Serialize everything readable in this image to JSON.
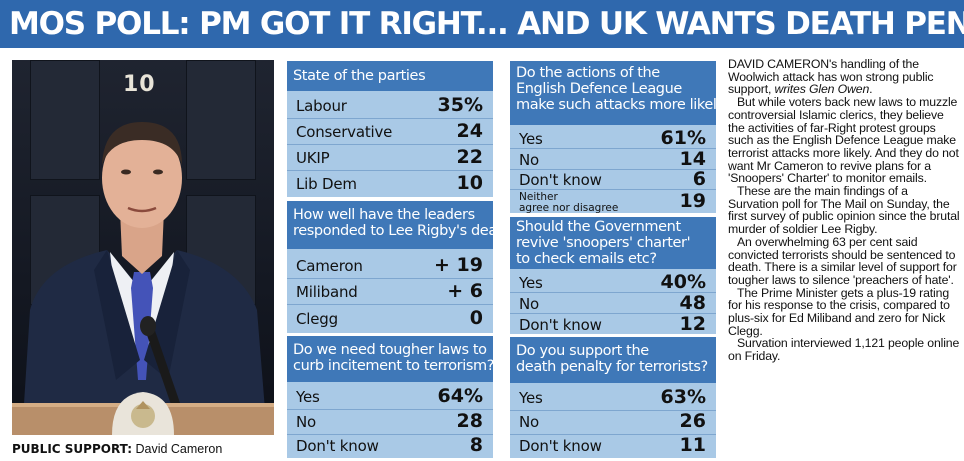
{
  "headline": "MOS POLL: PM GOT IT RIGHT... AND UK WANTS DEATH PENALTY BACK",
  "photo": {
    "door_number": "10",
    "caption_label": "PUBLIC SUPPORT:",
    "caption_text": " David Cameron",
    "colors": {
      "suit": "#1f2a44",
      "tie": "#4453b8",
      "shirt": "#eef0f4",
      "door": "#1a1f2a"
    }
  },
  "polls": [
    {
      "question_lines": [
        "State of the parties"
      ],
      "rows": [
        {
          "label": "Labour",
          "value": "35%"
        },
        {
          "label": "Conservative",
          "value": "24"
        },
        {
          "label": "UKIP",
          "value": "22"
        },
        {
          "label": "Lib Dem",
          "value": "10"
        }
      ]
    },
    {
      "question_lines": [
        "How well have the leaders",
        "responded to Lee Rigby's death?"
      ],
      "rows": [
        {
          "label": "Cameron",
          "value": "+ 19"
        },
        {
          "label": "Miliband",
          "value": "+ 6"
        },
        {
          "label": "Clegg",
          "value": "0"
        }
      ]
    },
    {
      "question_lines": [
        "Do we need tougher laws to",
        "curb incitement to terrorism?"
      ],
      "rows": [
        {
          "label": "Yes",
          "value": "64%"
        },
        {
          "label": "No",
          "value": "28"
        },
        {
          "label": "Don't know",
          "value": "8"
        }
      ]
    },
    {
      "question_lines": [
        "Do the actions of the",
        "English Defence League",
        "make such attacks more likely?"
      ],
      "rows": [
        {
          "label": "Yes",
          "value": "61%"
        },
        {
          "label": "No",
          "value": "14"
        },
        {
          "label": "Don't know",
          "value": "6"
        },
        {
          "label_lines": [
            "Neither",
            "agree nor disagree"
          ],
          "value": "19"
        }
      ]
    },
    {
      "question_lines": [
        "Should the Government",
        "revive 'snoopers' charter'",
        "to check emails etc?"
      ],
      "rows": [
        {
          "label": "Yes",
          "value": "40%"
        },
        {
          "label": "No",
          "value": "48"
        },
        {
          "label": "Don't know",
          "value": "12"
        }
      ]
    },
    {
      "question_lines": [
        "Do you support the",
        "death penalty for terrorists?"
      ],
      "rows": [
        {
          "label": "Yes",
          "value": "63%"
        },
        {
          "label": "No",
          "value": "26"
        },
        {
          "label": "Don't know",
          "value": "11"
        }
      ]
    }
  ],
  "article": {
    "lead": "DAVID CAMERON's handling of the Woolwich attack has won strong public support, ",
    "byline": "writes Glen Owen",
    "lead_end": ".",
    "paragraphs": [
      "But while voters back new laws to muzzle controversial Islamic clerics, they believe the activities of far-Right protest groups such as the English Defence League make terrorist attacks more likely. And they do not want Mr Cameron to revive plans for a 'Snoopers' Charter' to monitor emails.",
      "These are the main findings of a Survation poll for The Mail on Sunday, the first survey of public opinion since the brutal murder of soldier Lee Rigby.",
      "An overwhelming 63 per cent said convicted terrorists should be sentenced to death. There is a similar level of support for tougher laws to silence 'preachers of hate'.",
      "The Prime Minister gets a plus-19 rating for his response to the crisis, compared to plus-six for Ed Miliband and zero for Nick Clegg.",
      "Survation interviewed 1,121 people online on Friday."
    ]
  }
}
